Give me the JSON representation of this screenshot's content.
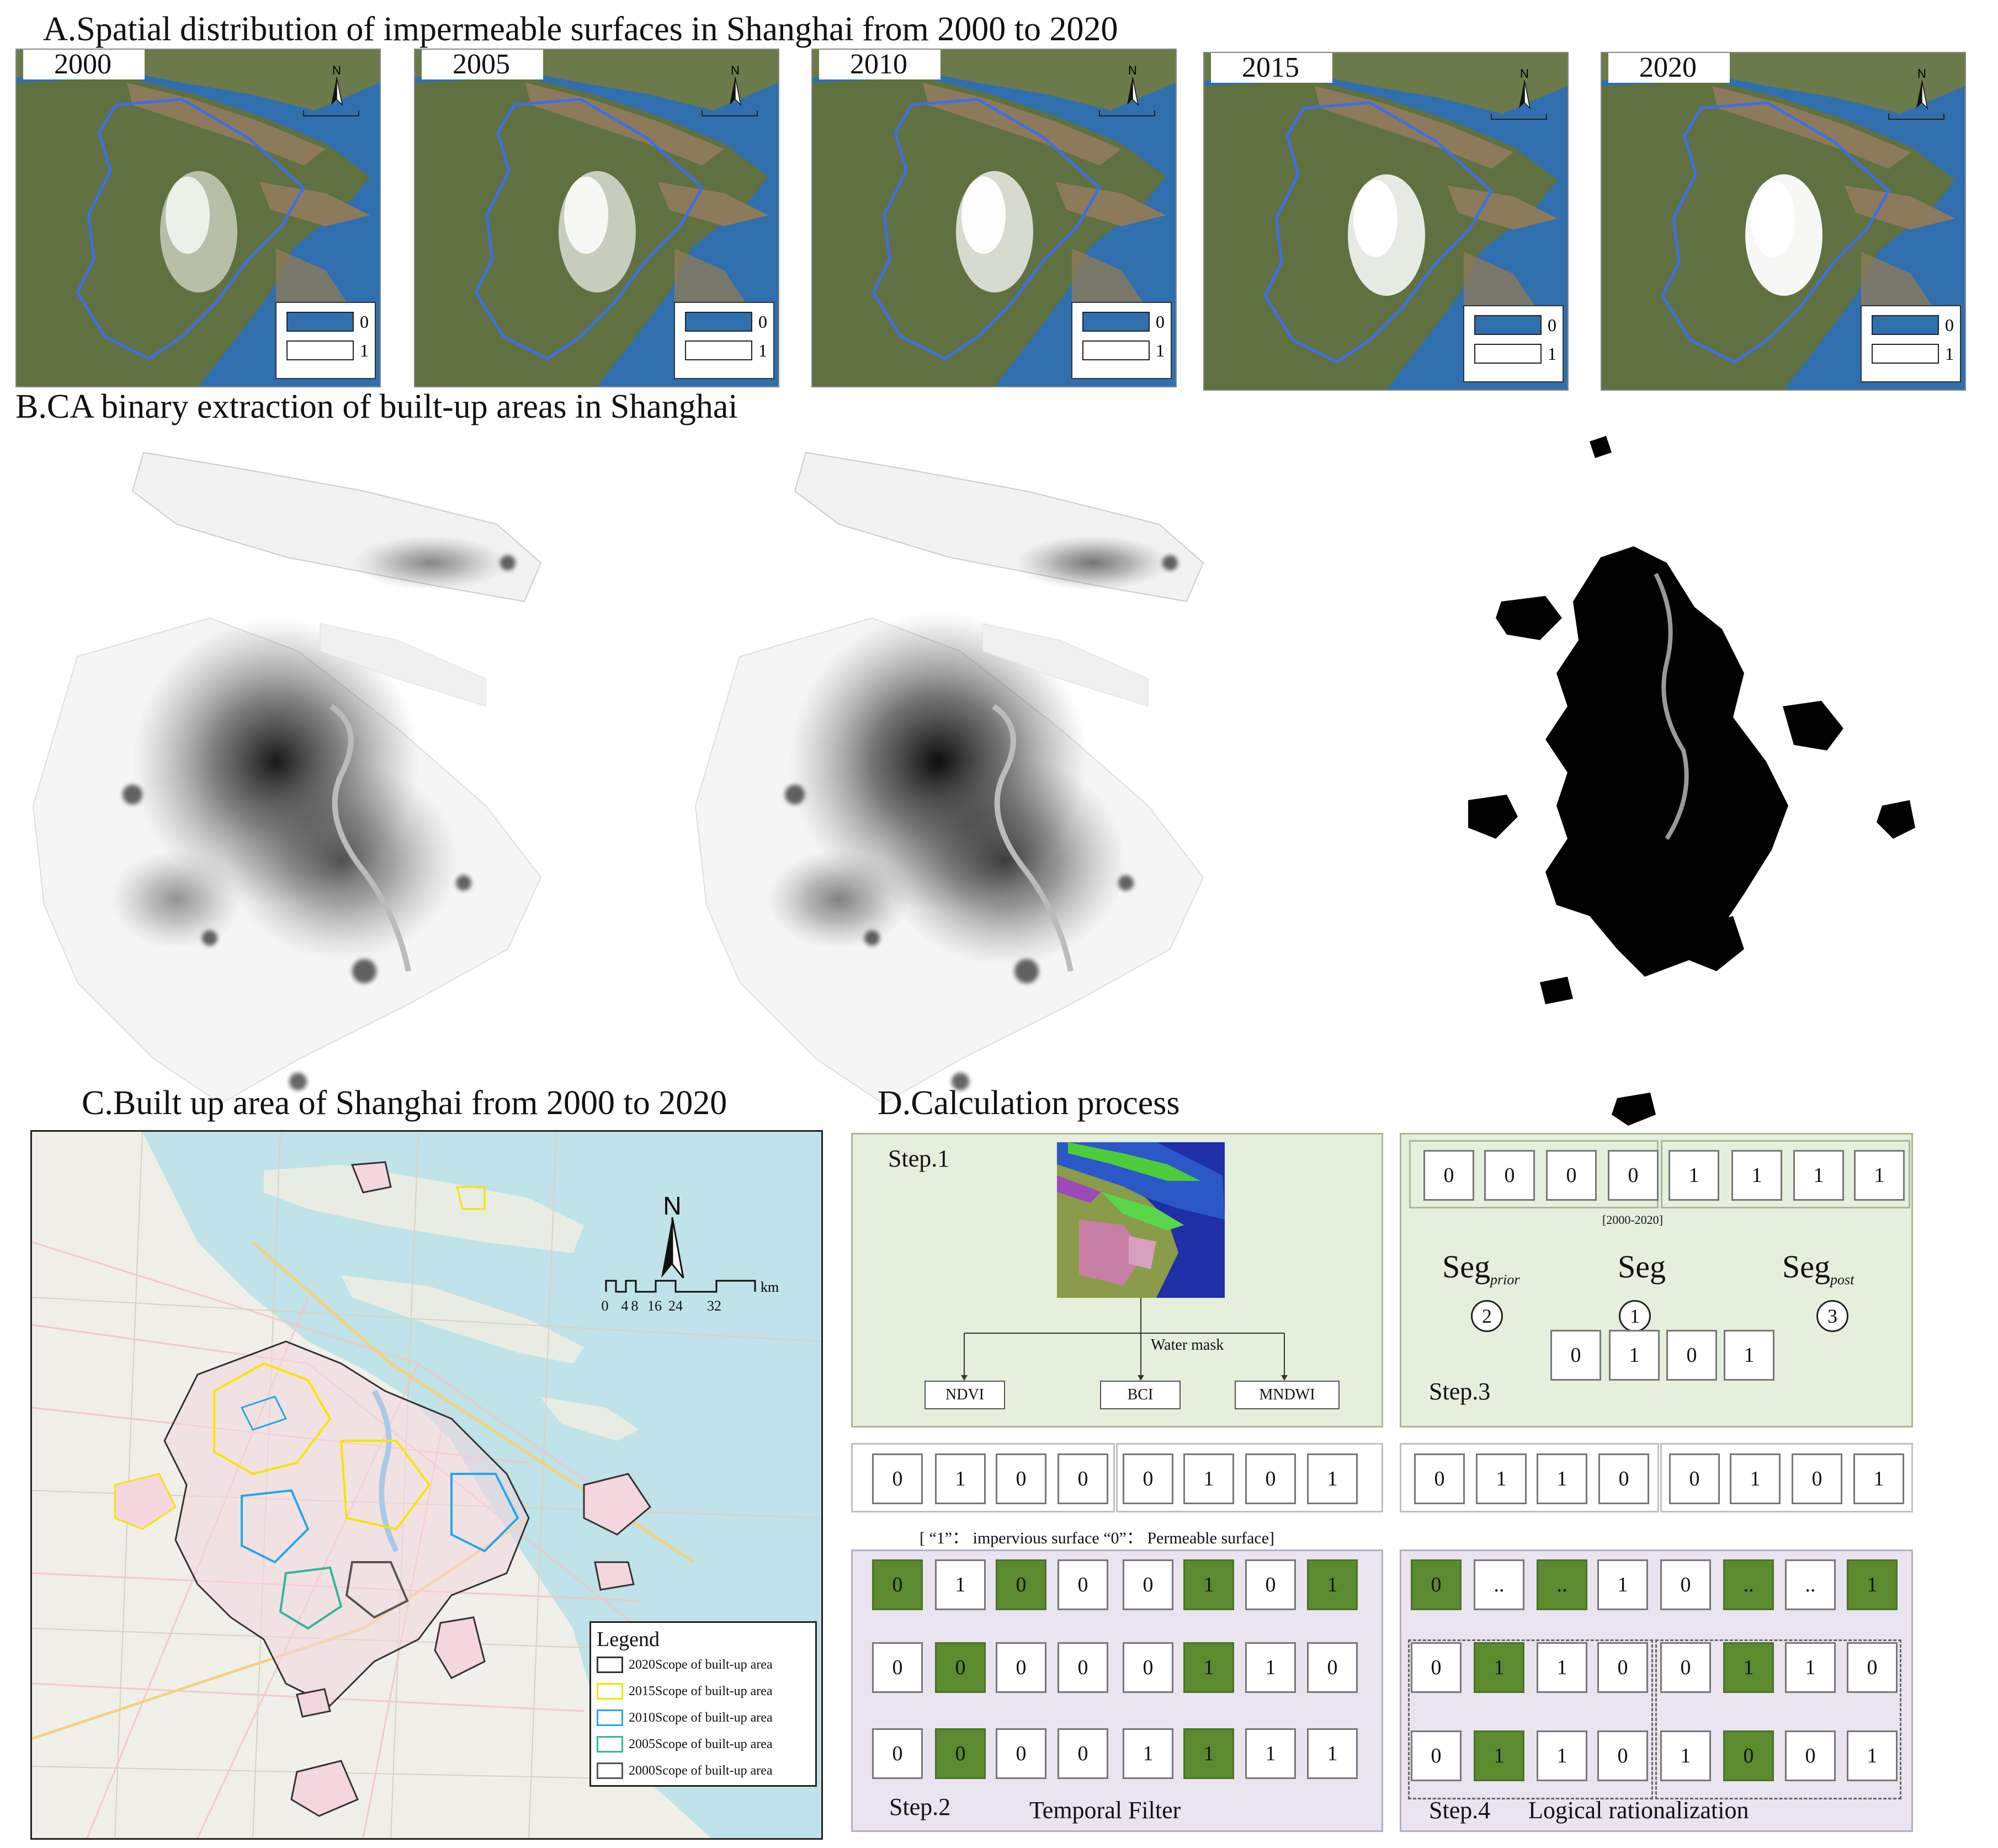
{
  "panelA": {
    "title": "A.Spatial distribution of impermeable surfaces in Shanghai from 2000 to 2020",
    "maps": [
      {
        "year": "2000"
      },
      {
        "year": "2005"
      },
      {
        "year": "2010"
      },
      {
        "year": "2015"
      },
      {
        "year": "2020"
      }
    ],
    "legend": {
      "v0": "0",
      "v1": "1"
    },
    "north": "N"
  },
  "panelB": {
    "title": "B.CA binary extraction of built-up areas in Shanghai"
  },
  "panelC": {
    "title": "C.Built up area of Shanghai from 2000 to 2020",
    "north": "N",
    "scale": {
      "ticks": [
        "0",
        "4",
        "8",
        "16",
        "24",
        "32"
      ],
      "unit": "km"
    },
    "legend": {
      "title": "Legend",
      "items": [
        {
          "label": "2020Scope of built-up area",
          "color": "#333333"
        },
        {
          "label": "2015Scope of built-up area",
          "color": "#f2e600"
        },
        {
          "label": "2010Scope of built-up area",
          "color": "#22a8e8"
        },
        {
          "label": "2005Scope of built-up area",
          "color": "#2fb89a"
        },
        {
          "label": "2000Scope of built-up area",
          "color": "#555555"
        }
      ]
    }
  },
  "panelD": {
    "title": "D.Calculation process",
    "step1": {
      "label": "Step.1",
      "water_mask": "Water mask",
      "indices": [
        "NDVI",
        "BCI",
        "MNDWI"
      ]
    },
    "step3": {
      "label": "Step.3",
      "top_cells": [
        "0",
        "0",
        "0",
        "0",
        "1",
        "1",
        "1",
        "1"
      ],
      "range": "[2000-2020]",
      "seg_prior": "Seg",
      "seg_prior_sub": "prior",
      "seg_prior_num": "2",
      "seg": "Seg",
      "seg_num": "1",
      "seg_post": "Seg",
      "seg_post_sub": "post",
      "seg_post_num": "3",
      "bottom_cells": [
        "0",
        "1",
        "0",
        "1"
      ]
    },
    "row_mid_left": [
      "0",
      "1",
      "0",
      "0",
      "0",
      "1",
      "0",
      "1"
    ],
    "row_mid_right": [
      "0",
      "1",
      "1",
      "0",
      "0",
      "1",
      "0",
      "1"
    ],
    "note": "[ “1”： impervious surface  “0”： Permeable surface]",
    "step2": {
      "label": "Step.2",
      "name": "Temporal Filter",
      "rows": [
        [
          "0",
          "1",
          "0",
          "0",
          "0",
          "1",
          "0",
          "1"
        ],
        [
          "0",
          "0",
          "0",
          "0",
          "0",
          "1",
          "1",
          "0"
        ],
        [
          "0",
          "0",
          "0",
          "0",
          "1",
          "1",
          "1",
          "1"
        ]
      ],
      "highlight": [
        [
          true,
          false,
          true,
          false,
          false,
          true,
          false,
          true
        ],
        [
          false,
          true,
          false,
          false,
          false,
          true,
          false,
          false
        ],
        [
          false,
          true,
          false,
          false,
          false,
          true,
          false,
          false
        ]
      ]
    },
    "step4": {
      "label": "Step.4",
      "name": "Logical rationalization",
      "rows": [
        [
          "0",
          "..",
          "..",
          "1",
          "0",
          "..",
          "..",
          "1"
        ],
        [
          "0",
          "1",
          "1",
          "0",
          "0",
          "1",
          "1",
          "0"
        ],
        [
          "0",
          "1",
          "1",
          "0",
          "1",
          "0",
          "0",
          "1"
        ]
      ],
      "highlight": [
        [
          true,
          false,
          true,
          false,
          false,
          true,
          false,
          true
        ],
        [
          false,
          true,
          false,
          false,
          false,
          true,
          false,
          false
        ],
        [
          false,
          true,
          false,
          false,
          false,
          true,
          false,
          false
        ]
      ]
    }
  }
}
